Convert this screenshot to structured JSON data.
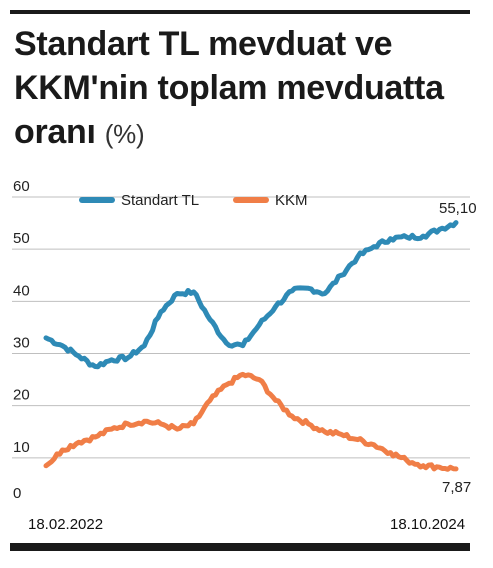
{
  "title": {
    "main": "Standart TL mevduat ve KKM'nin toplam mevduatta oranı",
    "unit": "(%)"
  },
  "colors": {
    "standart_tl": "#2e8ab6",
    "kkm": "#f07e47",
    "grid": "#bfbfbf",
    "rule": "#1a1a1a"
  },
  "chart_data": {
    "type": "line",
    "title": "Standart TL mevduat ve KKM'nin toplam mevduatta oranı (%)",
    "ylim": [
      0,
      60
    ],
    "yticks": [
      0,
      10,
      20,
      30,
      40,
      50,
      60
    ],
    "ytick_labels": [
      "0",
      "10",
      "20",
      "30",
      "40",
      "50",
      "60"
    ],
    "grid": true,
    "legend": "top-left",
    "x_start_label": "18.02.2022",
    "x_end_label": "18.10.2024",
    "x": [
      0,
      0.04,
      0.08,
      0.12,
      0.16,
      0.2,
      0.24,
      0.28,
      0.32,
      0.36,
      0.4,
      0.44,
      0.48,
      0.52,
      0.56,
      0.6,
      0.64,
      0.68,
      0.72,
      0.76,
      0.8,
      0.84,
      0.88,
      0.92,
      0.96,
      1.0
    ],
    "series": [
      {
        "name": "Standart TL",
        "end_label": "55,10",
        "values": [
          33,
          31.5,
          29.5,
          27.5,
          28.8,
          29.2,
          31.5,
          38,
          41.5,
          41.8,
          36.5,
          32,
          31.5,
          35.5,
          39,
          42,
          42.5,
          41.5,
          45,
          48.5,
          50.5,
          52,
          52.3,
          52.5,
          53.8,
          55.1
        ]
      },
      {
        "name": "KKM",
        "end_label": "7,87",
        "values": [
          8.5,
          11.5,
          13,
          14,
          15.5,
          16.5,
          17,
          16.5,
          15.5,
          16.5,
          21,
          24,
          26,
          25,
          21,
          18,
          16.5,
          15,
          14.5,
          13.5,
          12.5,
          11,
          9.5,
          8.5,
          8.2,
          7.87
        ]
      }
    ]
  }
}
